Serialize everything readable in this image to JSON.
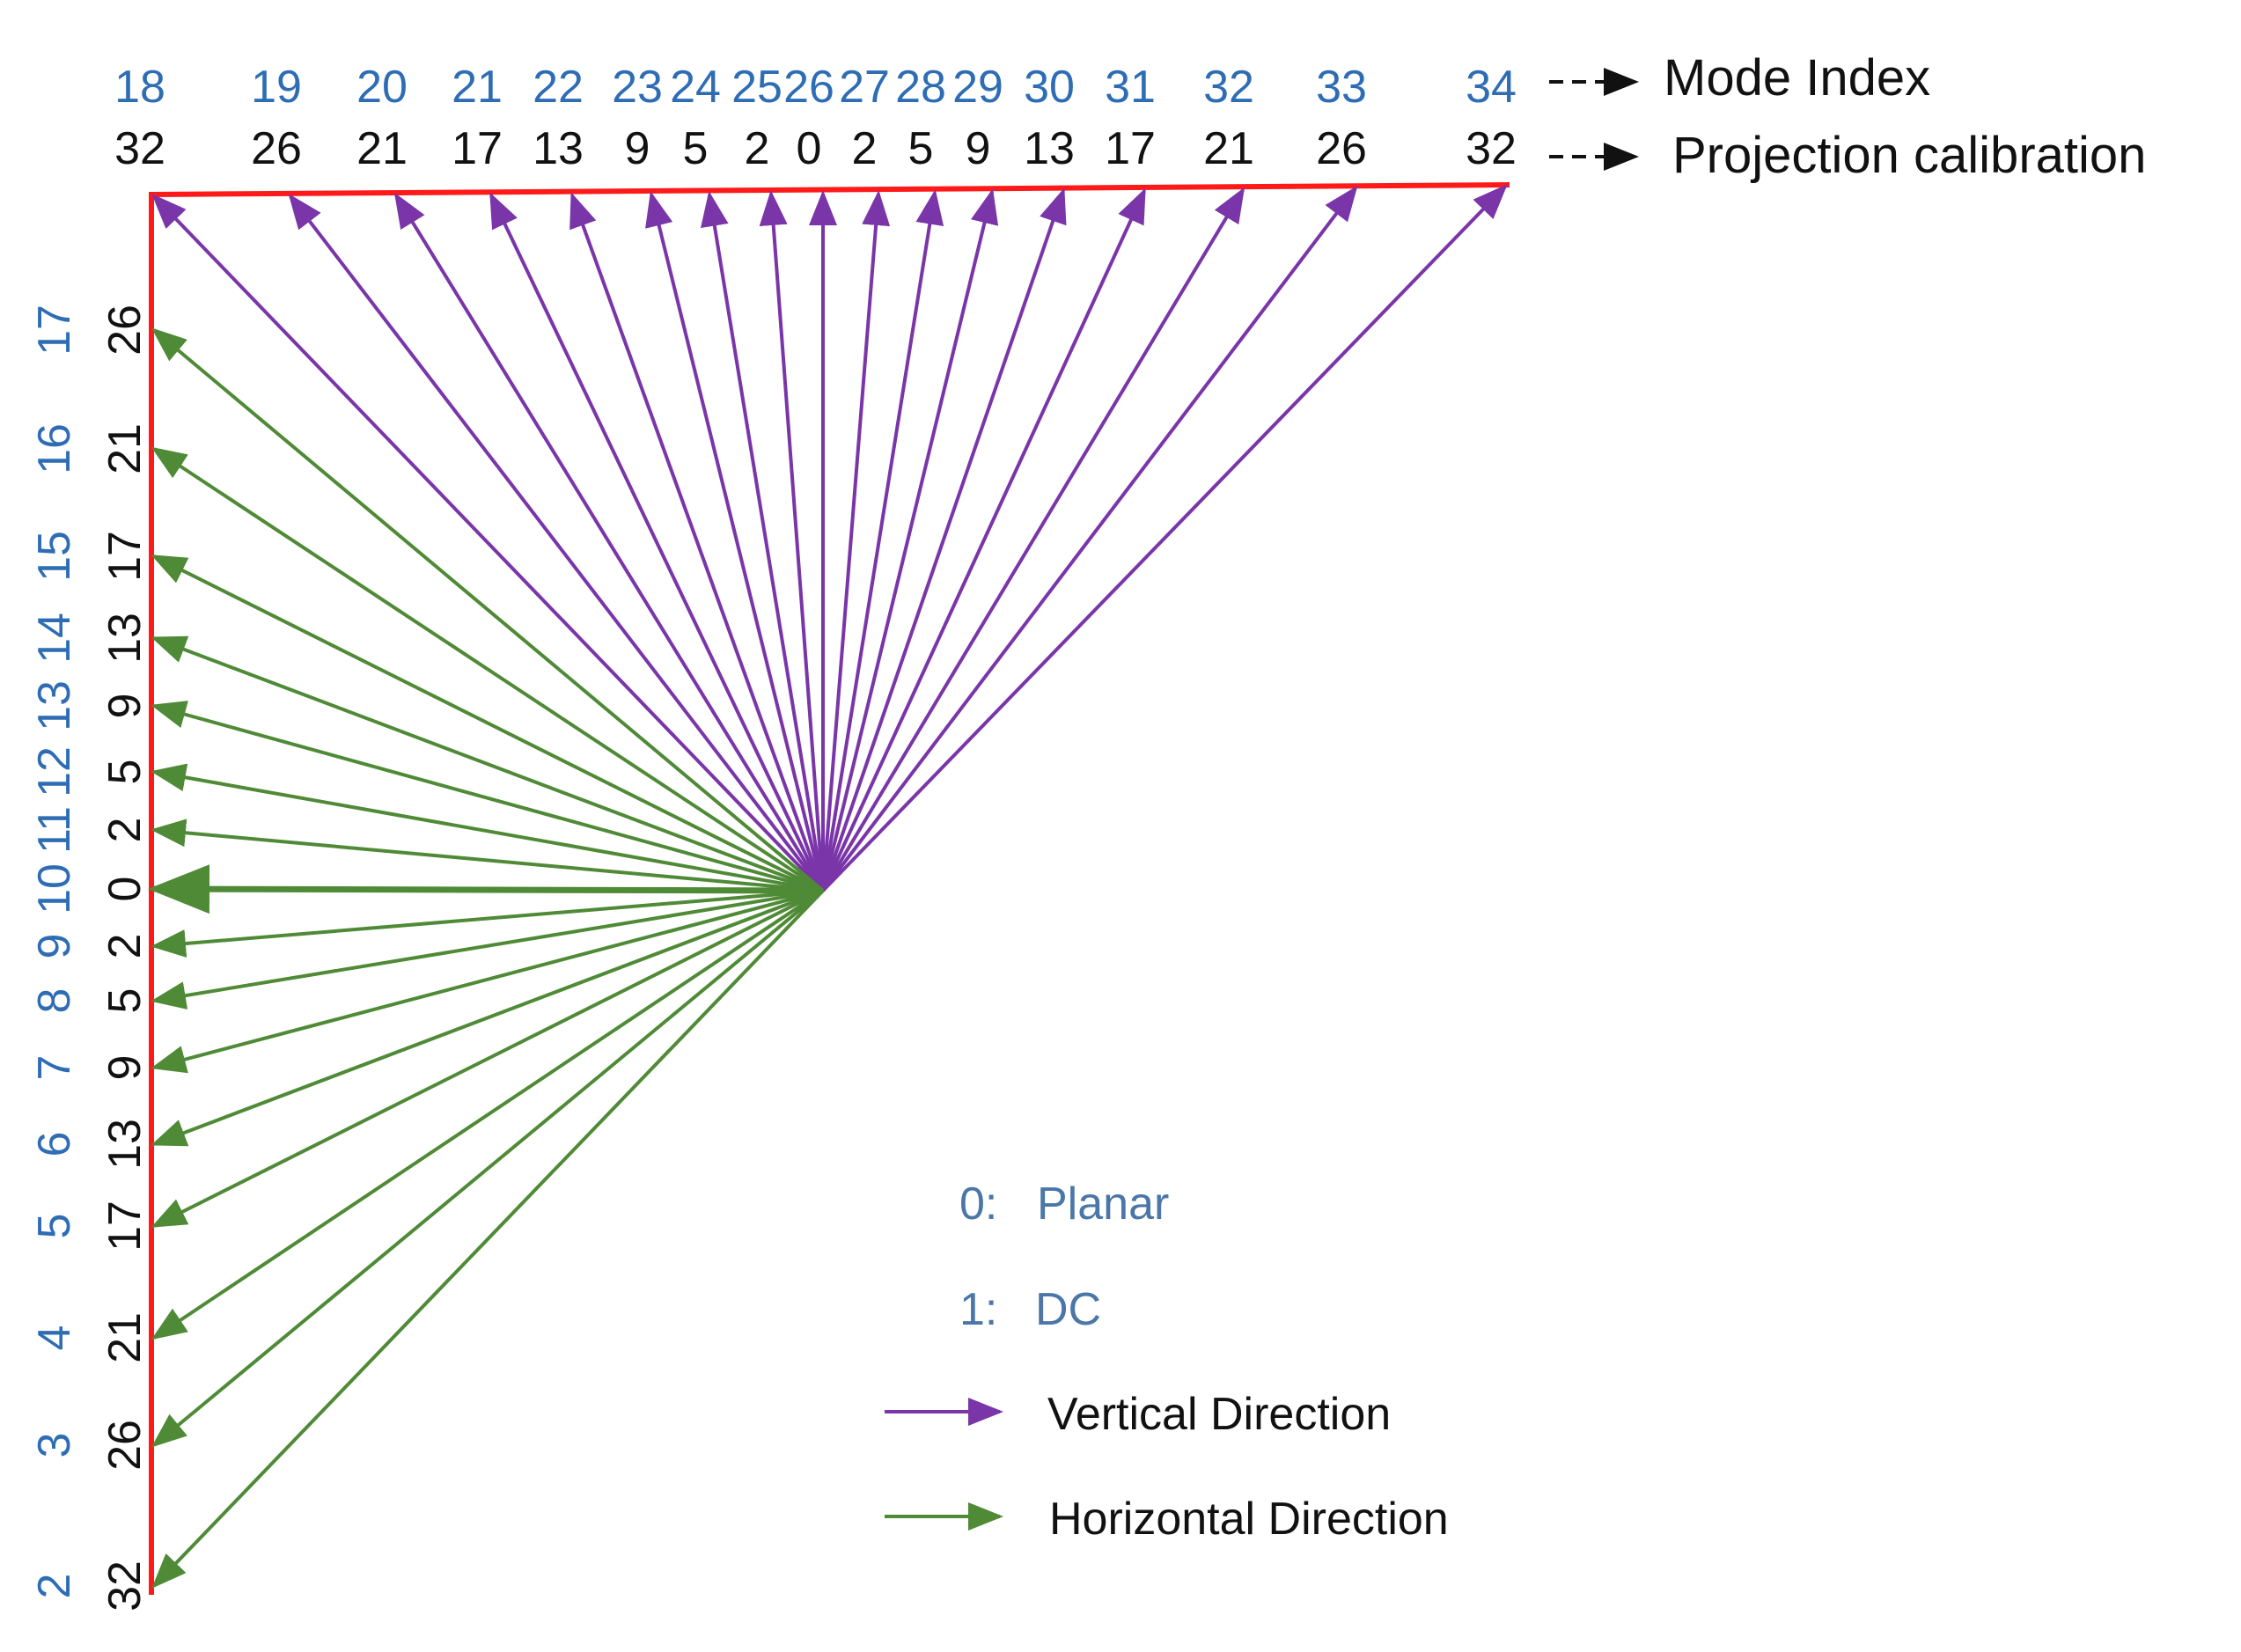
{
  "colors": {
    "vertical": "#7a35a8",
    "horizontal": "#4f8a36",
    "boundary": "#ff1a1a",
    "mode_label": "#2e6db4",
    "calibration_label": "#111111",
    "legend_key": "#4a76a8"
  },
  "top_labels": {
    "mode_indices": [
      "18",
      "19",
      "20",
      "21",
      "22",
      "23",
      "24",
      "25",
      "26",
      "27",
      "28",
      "29",
      "30",
      "31",
      "32",
      "33",
      "34"
    ],
    "calibrations": [
      "32",
      "26",
      "21",
      "17",
      "13",
      "9",
      "5",
      "2",
      "0",
      "2",
      "5",
      "9",
      "13",
      "17",
      "21",
      "26",
      "32"
    ]
  },
  "left_labels": {
    "mode_indices": [
      "17",
      "16",
      "15",
      "14",
      "13",
      "12",
      "11",
      "10",
      "9",
      "8",
      "7",
      "6",
      "5",
      "4",
      "3",
      "2"
    ],
    "calibrations": [
      "26",
      "21",
      "17",
      "13",
      "9",
      "5",
      "2",
      "0",
      "2",
      "5",
      "9",
      "13",
      "17",
      "21",
      "26",
      "32"
    ]
  },
  "header_keys": {
    "mode_index": "Mode Index",
    "projection_calibration": "Projection calibration"
  },
  "legend": {
    "planar_key": "0:",
    "planar_label": "Planar",
    "dc_key": "1:",
    "dc_label": "DC",
    "vertical_label": "Vertical Direction",
    "horizontal_label": "Horizontal Direction"
  }
}
